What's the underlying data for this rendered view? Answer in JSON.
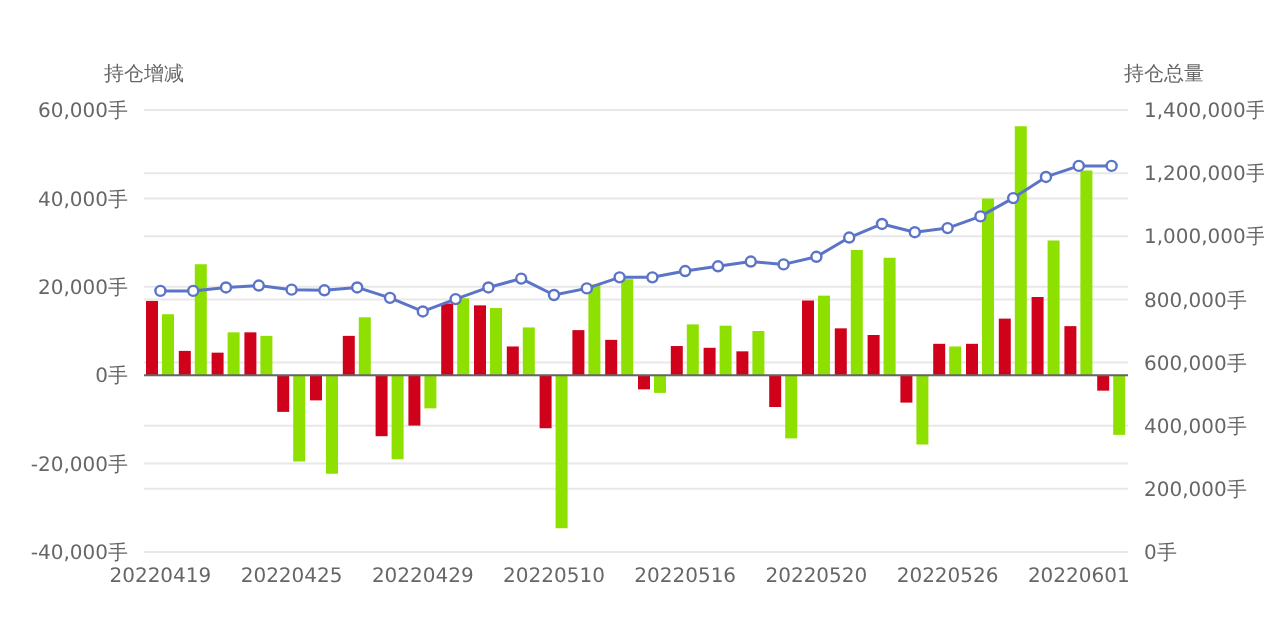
{
  "chart_data": {
    "type": "bar",
    "ylabel": "持仓增减",
    "y2label": "持仓总量",
    "categories": [
      "20220419",
      null,
      null,
      null,
      "20220425",
      null,
      null,
      null,
      "20220429",
      null,
      null,
      null,
      "20220510",
      null,
      null,
      null,
      "20220516",
      null,
      null,
      null,
      "20220520",
      null,
      null,
      null,
      "20220526",
      null,
      null,
      null,
      "20220601",
      null
    ],
    "series": [
      {
        "color": "#d0021b",
        "values": [
          16800,
          5500,
          5100,
          9700,
          -8300,
          -5700,
          8900,
          -13800,
          -11400,
          16200,
          15800,
          6500,
          -12000,
          10200,
          8000,
          -3200,
          6600,
          6200,
          5400,
          -7200,
          16900,
          10600,
          9100,
          -6200,
          7100,
          7100,
          12800,
          17700,
          11100,
          -3500
        ]
      },
      {
        "color": "#8ee000",
        "values": [
          13800,
          25100,
          9700,
          8900,
          -19500,
          -22300,
          13100,
          -19000,
          -7500,
          17400,
          15200,
          10800,
          -34600,
          20500,
          21700,
          -4000,
          11500,
          11200,
          10000,
          -14300,
          18000,
          28300,
          26600,
          -15700,
          6500,
          40000,
          56300,
          30500,
          46300,
          -13500
        ]
      },
      {
        "type": "line",
        "axis": "y2",
        "color": "#5b74c8",
        "marker": "circle",
        "values": [
          827000,
          827000,
          838000,
          844000,
          831000,
          829000,
          838000,
          805000,
          762000,
          801000,
          838000,
          866000,
          814000,
          835000,
          870000,
          870000,
          890000,
          905000,
          920000,
          911000,
          935000,
          996000,
          1039000,
          1013000,
          1026000,
          1063000,
          1121000,
          1188000,
          1223000,
          1223000
        ]
      }
    ],
    "ylim": [
      -40000,
      60000
    ],
    "yticks": [
      {
        "value": -40000,
        "label": "-40,000手"
      },
      {
        "value": -20000,
        "label": "-20,000手"
      },
      {
        "value": 0,
        "label": "0手"
      },
      {
        "value": 20000,
        "label": "20,000手"
      },
      {
        "value": 40000,
        "label": "40,000手"
      },
      {
        "value": 60000,
        "label": "60,000手"
      }
    ],
    "y2lim": [
      0,
      1400000
    ],
    "y2ticks": [
      {
        "value": 0,
        "label": "0手"
      },
      {
        "value": 200000,
        "label": "200,000手"
      },
      {
        "value": 400000,
        "label": "400,000手"
      },
      {
        "value": 600000,
        "label": "600,000手"
      },
      {
        "value": 800000,
        "label": "800,000手"
      },
      {
        "value": 1000000,
        "label": "1,000,000手"
      },
      {
        "value": 1200000,
        "label": "1,200,000手"
      },
      {
        "value": 1400000,
        "label": "1,400,000手"
      }
    ],
    "grid": true,
    "legend": false
  }
}
